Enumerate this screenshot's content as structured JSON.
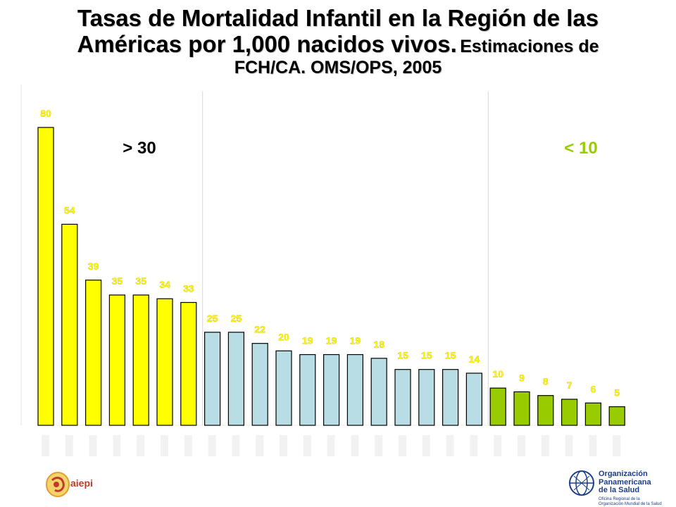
{
  "title": {
    "line1": "Tasas de Mortalidad Infantil en la Región de las",
    "line2_main": "Américas por 1,000 nacidos vivos.",
    "line2_sub": "Estimaciones de",
    "line3": "FCH/CA. OMS/OPS, 2005"
  },
  "chart_data": {
    "type": "bar",
    "title": "Tasas de Mortalidad Infantil en la Región de las Américas por 1,000 nacidos vivos. Estimaciones de FCH/CA. OMS/OPS, 2005",
    "values": [
      80,
      54,
      39,
      35,
      35,
      34,
      33,
      25,
      25,
      22,
      20,
      19,
      19,
      19,
      18,
      15,
      15,
      15,
      14,
      10,
      9,
      8,
      7,
      6,
      5
    ],
    "ylim": [
      0,
      90
    ],
    "groups": [
      {
        "label": "> 30",
        "count": 7,
        "color": "#ffff00"
      },
      {
        "label": "",
        "count": 12,
        "color": "#b9dde4"
      },
      {
        "label": "< 10",
        "count": 6,
        "color": "#99cc00"
      }
    ],
    "colors": {
      "label": "#ffff00",
      "gt30_text": "#000000",
      "lt10_text": "#99cc00"
    }
  },
  "logos": {
    "left_text": "aiepi",
    "right_line1": "Organización",
    "right_line2": "Panamericana",
    "right_line3": "de la Salud",
    "right_sub1": "Oficina Regional de la",
    "right_sub2": "Organización Mundial de la Salud"
  }
}
